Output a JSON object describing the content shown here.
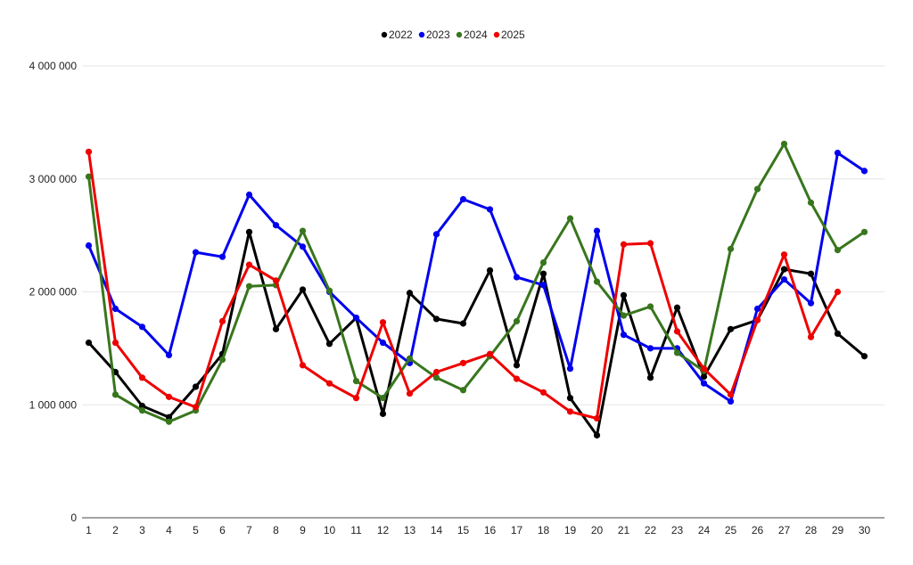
{
  "chart_data": {
    "type": "line",
    "title": "",
    "xlabel": "",
    "ylabel": "",
    "categories": [
      "1",
      "2",
      "3",
      "4",
      "5",
      "6",
      "7",
      "8",
      "9",
      "10",
      "11",
      "12",
      "13",
      "14",
      "15",
      "16",
      "17",
      "18",
      "19",
      "20",
      "21",
      "22",
      "23",
      "24",
      "25",
      "26",
      "27",
      "28",
      "29",
      "30"
    ],
    "ylim": [
      0,
      4000000
    ],
    "yticks": [
      0,
      1000000,
      2000000,
      3000000,
      4000000
    ],
    "ytick_labels": [
      "0",
      "1 000 000",
      "2 000 000",
      "3 000 000",
      "4 000 000"
    ],
    "grid": true,
    "legend_position": "top-center",
    "series": [
      {
        "name": "2022",
        "color": "#000000",
        "values": [
          1550000,
          1290000,
          990000,
          890000,
          1160000,
          1450000,
          2530000,
          1670000,
          2020000,
          1540000,
          1770000,
          920000,
          1990000,
          1760000,
          1720000,
          2190000,
          1350000,
          2160000,
          1060000,
          730000,
          1970000,
          1240000,
          1860000,
          1250000,
          1670000,
          1750000,
          2200000,
          2160000,
          1630000,
          1430000
        ]
      },
      {
        "name": "2023",
        "color": "#0000ee",
        "values": [
          2410000,
          1850000,
          1690000,
          1440000,
          2350000,
          2310000,
          2860000,
          2590000,
          2400000,
          2000000,
          1770000,
          1550000,
          1370000,
          2510000,
          2820000,
          2730000,
          2130000,
          2060000,
          1320000,
          2540000,
          1620000,
          1500000,
          1500000,
          1190000,
          1030000,
          1850000,
          2110000,
          1900000,
          3230000,
          3070000
        ]
      },
      {
        "name": "2024",
        "color": "#38761d",
        "values": [
          3020000,
          1090000,
          950000,
          850000,
          950000,
          1400000,
          2050000,
          2060000,
          2540000,
          2010000,
          1210000,
          1060000,
          1410000,
          1240000,
          1130000,
          1430000,
          1740000,
          2260000,
          2650000,
          2090000,
          1790000,
          1870000,
          1460000,
          1300000,
          2380000,
          2910000,
          3310000,
          2790000,
          2370000,
          2530000
        ]
      },
      {
        "name": "2025",
        "color": "#ee0000",
        "values": [
          3240000,
          1550000,
          1240000,
          1070000,
          980000,
          1740000,
          2240000,
          2100000,
          1350000,
          1190000,
          1060000,
          1730000,
          1100000,
          1290000,
          1370000,
          1450000,
          1230000,
          1110000,
          940000,
          880000,
          2420000,
          2430000,
          1650000,
          1320000,
          1090000,
          1750000,
          2330000,
          1600000,
          2000000,
          null
        ]
      }
    ]
  }
}
